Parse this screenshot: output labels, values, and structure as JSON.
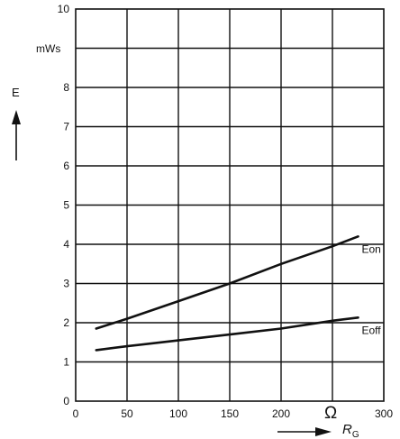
{
  "chart_data": {
    "type": "line",
    "title": "",
    "ylabel": "E",
    "yunit": "mWs",
    "xlabel": "R",
    "xlabel_subscript": "G",
    "xunit": "Ω",
    "xlim": [
      0,
      300
    ],
    "ylim": [
      0,
      10
    ],
    "xticks": [
      0,
      50,
      100,
      150,
      200,
      300
    ],
    "yticks": [
      0,
      1,
      2,
      3,
      4,
      5,
      6,
      7,
      8,
      10
    ],
    "grid": true,
    "series": [
      {
        "name": "Eon",
        "x": [
          20,
          50,
          100,
          150,
          200,
          250,
          275
        ],
        "y": [
          1.85,
          2.1,
          2.55,
          3.0,
          3.5,
          3.95,
          4.2
        ]
      },
      {
        "name": "Eoff",
        "x": [
          20,
          50,
          100,
          150,
          200,
          250,
          275
        ],
        "y": [
          1.3,
          1.4,
          1.55,
          1.7,
          1.85,
          2.05,
          2.13
        ]
      }
    ]
  }
}
